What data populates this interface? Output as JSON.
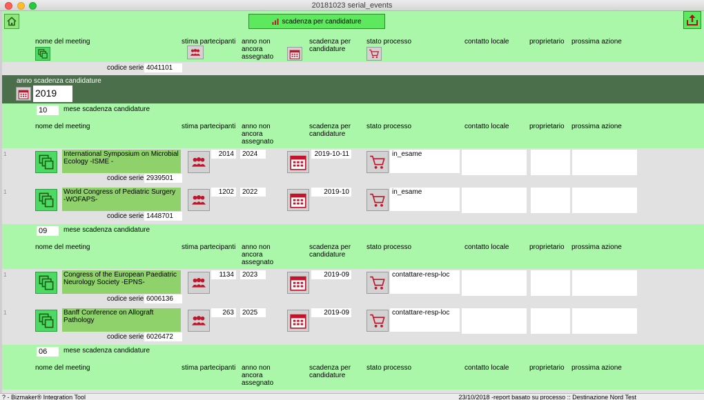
{
  "window": {
    "title": "20181023 serial_events"
  },
  "toolbar": {
    "sort_button_label": "scadenza per candidature"
  },
  "columns": {
    "nome": "nome del meeting",
    "stima": "stima partecipanti",
    "anno_non": "anno non ancora assegnato",
    "scadenza": "scadenza per candidature",
    "stato": "stato processo",
    "contatto": "contatto locale",
    "proprietario": "proprietario",
    "prossima": "prossima azione"
  },
  "top": {
    "codice_label": "codice serie",
    "codice_value": "4041101"
  },
  "year_group": {
    "label": "anno scadenza candidature",
    "value": "2019"
  },
  "month_label": "mese scadenza candidature",
  "codice_label": "codice serie",
  "groups": [
    {
      "month": "10",
      "rows": [
        {
          "num": "1",
          "name": "International Symposium on Microbial Ecology -ISME -",
          "codice": "2939501",
          "stima": "2014",
          "anno": "2024",
          "scadenza": "2019-10-11",
          "stato": "in_esame"
        },
        {
          "num": "1",
          "name": "World Congress of Pediatric Surgery -WOFAPS-",
          "codice": "1448701",
          "stima": "1202",
          "anno": "2022",
          "scadenza": "2019-10",
          "stato": "in_esame"
        }
      ]
    },
    {
      "month": "09",
      "rows": [
        {
          "num": "1",
          "name": "Congress of the European Paediatric Neurology Society -EPNS-",
          "codice": "6006136",
          "stima": "1134",
          "anno": "2023",
          "scadenza": "2019-09",
          "stato": "contattare-resp-loc"
        },
        {
          "num": "1",
          "name": "Banff Conference on Allograft Pathology",
          "codice": "6026472",
          "stima": "263",
          "anno": "2025",
          "scadenza": "2019-09",
          "stato": "contattare-resp-loc"
        }
      ]
    },
    {
      "month": "06",
      "rows": []
    }
  ],
  "statusbar": {
    "left": "? -  Bizmaker® Integration Tool",
    "right": "23/10/2018 -report basato su processo  ::  Destinazione Nord Test"
  },
  "icons": {
    "home": "home-icon",
    "export": "export-icon",
    "meeting": "copy-windows-icon",
    "people": "people-icon",
    "calendar": "calendar-icon",
    "cart": "cart-icon",
    "chart": "bar-chart-icon"
  },
  "colors": {
    "header_green": "#aaf7aa",
    "row_gray": "#e1e1e1",
    "year_band": "#4b6e4b",
    "name_green": "#8fd16a",
    "icon_red": "#c0152a"
  }
}
